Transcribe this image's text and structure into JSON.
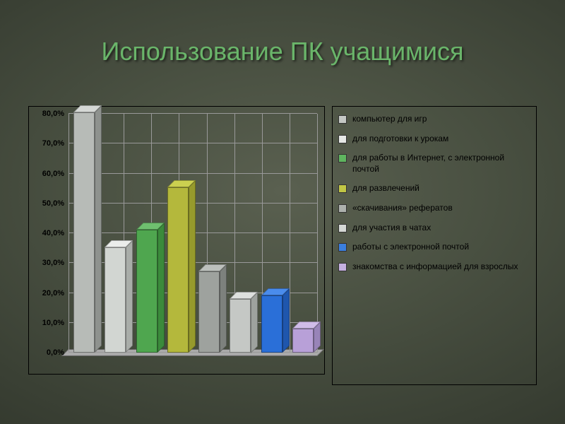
{
  "title": "Использование ПК учащимися",
  "chart": {
    "type": "bar",
    "ylim": [
      0,
      80
    ],
    "ytick_step": 10,
    "ytick_format": "0,0%",
    "yticks": [
      "0,0%",
      "10,0%",
      "20,0%",
      "30,0%",
      "40,0%",
      "50,0%",
      "60,0%",
      "70,0%",
      "80,0%"
    ],
    "background": "transparent",
    "grid_color": "#999999",
    "axis_label_fontsize": 11,
    "axis_label_weight": "bold",
    "axis_label_color": "#000000",
    "bar_depth": 10,
    "series": [
      {
        "label": "компьютер для игр",
        "value": 80,
        "front": "#b7bbb7",
        "top": "#d5d8d5",
        "side": "#8e928e",
        "swatch": "#c5c8c5"
      },
      {
        "label": "для подготовки к урокам",
        "value": 35,
        "front": "#d2d6d2",
        "top": "#ebedeb",
        "side": "#a9ada9",
        "swatch": "#e6e8e6"
      },
      {
        "label": "для работы в Интернет, с электронной почтой",
        "value": 41,
        "front": "#4fa64f",
        "top": "#6fbf6f",
        "side": "#3b8a3b",
        "swatch": "#5fb55f"
      },
      {
        "label": "для развлечений",
        "value": 55,
        "front": "#b4b83c",
        "top": "#cbd050",
        "side": "#969a2c",
        "swatch": "#c1c645"
      },
      {
        "label": "«скачивания» рефератов",
        "value": 27,
        "front": "#9ea29e",
        "top": "#bcc0bc",
        "side": "#7d817d",
        "swatch": "#adb1ad"
      },
      {
        "label": "для участия в чатах",
        "value": 18,
        "front": "#c5c8c5",
        "top": "#dee0de",
        "side": "#9ea29e",
        "swatch": "#d5d8d5"
      },
      {
        "label": "работы с электронной почтой",
        "value": 19,
        "front": "#2a6fd8",
        "top": "#4a8cec",
        "side": "#1f56ad",
        "swatch": "#3a7fe0"
      },
      {
        "label": "знакомства с информацией для взрослых",
        "value": 8,
        "front": "#b8a0d8",
        "top": "#d0bce8",
        "side": "#9884b8",
        "swatch": "#c5b0e0"
      }
    ]
  },
  "legend": {
    "font_size": 12,
    "text_color": "#000000",
    "swatch_border": "#333333"
  }
}
